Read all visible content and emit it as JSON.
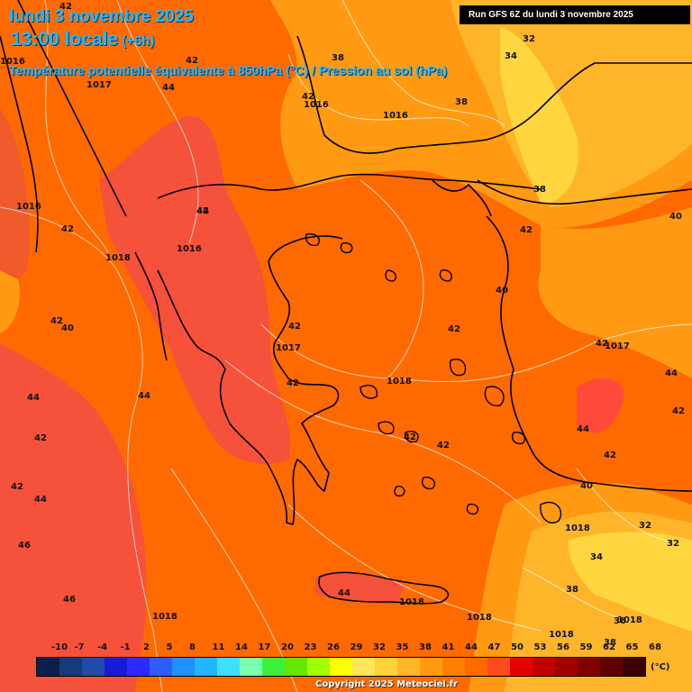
{
  "header": {
    "date_line": "lundi 3 novembre 2025",
    "time_line": "13:00 locale",
    "offset": "(+6h)",
    "parameter": "Température potentielle équivalente à 850hPa (°C) / Pression au sol (hPa)",
    "run_info": "Run GFS 6Z du lundi 3 novembre 2025"
  },
  "colors": {
    "background": "#ff6a00",
    "warm_zone": "#f6513a",
    "hot_patch": "#ff4a3a",
    "cool_zone": "#ff9a12",
    "cooler_zone": "#ffb52a",
    "coolest_zone": "#ffd640",
    "coast": "#000000",
    "isobars": "#ffffff"
  },
  "temperature_labels": [
    "42",
    "42",
    "44",
    "42",
    "38",
    "32",
    "34",
    "42",
    "42",
    "38",
    "38",
    "44",
    "42",
    "42",
    "40",
    "42",
    "42",
    "40",
    "40",
    "42",
    "42",
    "44",
    "44",
    "42",
    "42",
    "42",
    "44",
    "42",
    "46",
    "46",
    "42",
    "44",
    "44",
    "42",
    "44",
    "38",
    "36",
    "40",
    "38",
    "34",
    "32",
    "32"
  ],
  "pressure_labels": [
    "1016",
    "1017",
    "1016",
    "1016",
    "1016",
    "1016",
    "1018",
    "1017",
    "1018",
    "1017",
    "1018",
    "1018",
    "1018",
    "1018",
    "1018",
    "1018"
  ],
  "legend": {
    "ticks": [
      "-10",
      "-7",
      "-4",
      "-1",
      "2",
      "5",
      "8",
      "11",
      "14",
      "17",
      "20",
      "23",
      "26",
      "29",
      "32",
      "35",
      "38",
      "41",
      "44",
      "47",
      "50",
      "53",
      "56",
      "59",
      "62",
      "65",
      "68"
    ],
    "colors": [
      "#0b1f4d",
      "#163a7a",
      "#1f4aa8",
      "#1a1ad6",
      "#2b2bff",
      "#2f5cff",
      "#1e90ff",
      "#1fb6ff",
      "#3ee0ff",
      "#7bffb0",
      "#3ef03e",
      "#66e600",
      "#a0ff00",
      "#ffff00",
      "#ffe45c",
      "#ffd23a",
      "#ffb52a",
      "#ff9a12",
      "#ff7f00",
      "#ff6a00",
      "#ff4a20",
      "#e60000",
      "#c00000",
      "#a00000",
      "#800000",
      "#600000",
      "#3a0000"
    ],
    "unit": "(°C)"
  },
  "copyright": "Copyright 2025 Meteociel.fr"
}
